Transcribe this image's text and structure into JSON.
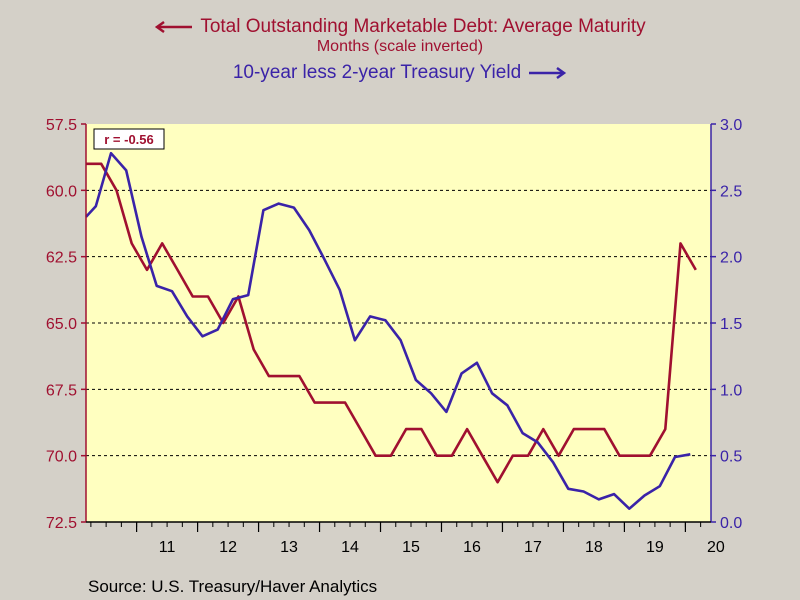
{
  "chart_data": {
    "type": "line",
    "series": [
      {
        "name": "Total Outstanding Marketable Debt: Average Maturity",
        "subtitle": "Months (scale inverted)",
        "axis": "left",
        "color": "#a01030",
        "legend_arrow": "left-arrow",
        "x": [
          2010.17,
          2010.42,
          2010.67,
          2010.92,
          2011.17,
          2011.42,
          2011.67,
          2011.92,
          2012.17,
          2012.42,
          2012.67,
          2012.92,
          2013.17,
          2013.42,
          2013.67,
          2013.92,
          2014.17,
          2014.42,
          2014.67,
          2014.92,
          2015.17,
          2015.42,
          2015.67,
          2015.92,
          2016.17,
          2016.42,
          2016.67,
          2016.92,
          2017.17,
          2017.42,
          2017.67,
          2017.92,
          2018.17,
          2018.42,
          2018.67,
          2018.92,
          2019.17,
          2019.42,
          2019.67,
          2019.92,
          2020.17
        ],
        "values": [
          59,
          59,
          60,
          62,
          63,
          62,
          63,
          64,
          64,
          65,
          64,
          66,
          67,
          67,
          67,
          68,
          68,
          68,
          69,
          70,
          70,
          69,
          69,
          70,
          70,
          69,
          70,
          71,
          70,
          70,
          69,
          70,
          69,
          69,
          69,
          70,
          70,
          70,
          69,
          62,
          63
        ]
      },
      {
        "name": "10-year less 2-year Treasury Yield",
        "axis": "right",
        "color": "#3a23a8",
        "legend_arrow": "right-arrow",
        "x": [
          2010.17,
          2010.33,
          2010.58,
          2010.83,
          2011.08,
          2011.33,
          2011.58,
          2011.83,
          2012.08,
          2012.33,
          2012.58,
          2012.83,
          2013.08,
          2013.33,
          2013.58,
          2013.83,
          2014.08,
          2014.33,
          2014.58,
          2014.83,
          2015.08,
          2015.33,
          2015.58,
          2015.83,
          2016.08,
          2016.33,
          2016.58,
          2016.83,
          2017.08,
          2017.33,
          2017.58,
          2017.83,
          2018.08,
          2018.33,
          2018.58,
          2018.83,
          2019.08,
          2019.33,
          2019.58,
          2019.83,
          2020.08
        ],
        "values": [
          2.3,
          2.38,
          2.78,
          2.65,
          2.15,
          1.78,
          1.74,
          1.55,
          1.4,
          1.45,
          1.68,
          1.71,
          2.35,
          2.4,
          2.37,
          2.2,
          1.98,
          1.75,
          1.37,
          1.55,
          1.52,
          1.37,
          1.07,
          0.97,
          0.83,
          1.12,
          1.2,
          0.97,
          0.88,
          0.67,
          0.6,
          0.45,
          0.25,
          0.23,
          0.17,
          0.21,
          0.1,
          0.2,
          0.27,
          0.49,
          0.51
        ]
      }
    ],
    "left_axis": {
      "ticks": [
        "57.5",
        "60.0",
        "62.5",
        "65.0",
        "67.5",
        "70.0",
        "72.5"
      ],
      "min": 57.5,
      "max": 72.5,
      "inverted": true
    },
    "right_axis": {
      "ticks": [
        "0.0",
        "0.5",
        "1.0",
        "1.5",
        "2.0",
        "2.5",
        "3.0"
      ],
      "min": 0,
      "max": 3
    },
    "x_axis": {
      "ticks": [
        "11",
        "12",
        "13",
        "14",
        "15",
        "16",
        "17",
        "18",
        "19",
        "20"
      ],
      "min": 2010.17,
      "max": 2020.42
    },
    "grid": "horizontal dashed",
    "annotation": "r = -0.56",
    "plot_background": "#ffffc0"
  },
  "legend": {
    "series1_label": "Total Outstanding Marketable Debt: Average Maturity",
    "series1_sublabel": "Months (scale inverted)",
    "series2_label": "10-year less 2-year Treasury Yield"
  },
  "source": "Source:  U.S. Treasury/Haver Analytics"
}
